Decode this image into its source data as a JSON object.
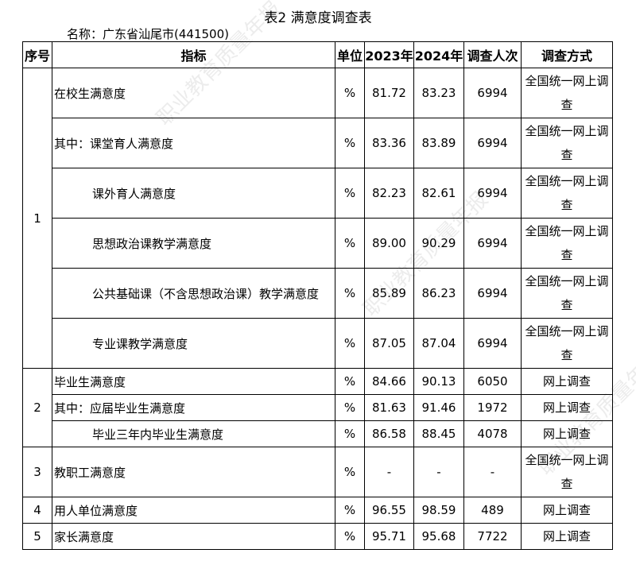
{
  "title": "表2 满意度调查表",
  "subtitle": "名称：广东省汕尾市(441500)",
  "watermark": "职业教育质量年报",
  "headers": [
    "序号",
    "指标",
    "单位",
    "2023年",
    "2024年",
    "调查人次",
    "调查方式"
  ],
  "groups": [
    {
      "no": "1",
      "rows": [
        {
          "indicator": "在校生满意度",
          "sub": false,
          "unit": "%",
          "y2023": "81.72",
          "y2024": "83.23",
          "count": "6994",
          "method": "全国统一网上调查"
        },
        {
          "indicator": "其中：课堂育人满意度",
          "sub": false,
          "unit": "%",
          "y2023": "83.36",
          "y2024": "83.89",
          "count": "6994",
          "method": "全国统一网上调查"
        },
        {
          "indicator": "课外育人满意度",
          "sub": true,
          "unit": "%",
          "y2023": "82.23",
          "y2024": "82.61",
          "count": "6994",
          "method": "全国统一网上调查"
        },
        {
          "indicator": "思想政治课教学满意度",
          "sub": true,
          "unit": "%",
          "y2023": "89.00",
          "y2024": "90.29",
          "count": "6994",
          "method": "全国统一网上调查"
        },
        {
          "indicator": "公共基础课（不含思想政治课）教学满意度",
          "sub": true,
          "unit": "%",
          "y2023": "85.89",
          "y2024": "86.23",
          "count": "6994",
          "method": "全国统一网上调查"
        },
        {
          "indicator": "专业课教学满意度",
          "sub": true,
          "unit": "%",
          "y2023": "87.05",
          "y2024": "87.04",
          "count": "6994",
          "method": "全国统一网上调查"
        }
      ]
    },
    {
      "no": "2",
      "rows": [
        {
          "indicator": "毕业生满意度",
          "sub": false,
          "unit": "%",
          "y2023": "84.66",
          "y2024": "90.13",
          "count": "6050",
          "method": "网上调查"
        },
        {
          "indicator": "其中：应届毕业生满意度",
          "sub": false,
          "unit": "%",
          "y2023": "81.63",
          "y2024": "91.46",
          "count": "1972",
          "method": "网上调查"
        },
        {
          "indicator": "毕业三年内毕业生满意度",
          "sub": true,
          "unit": "%",
          "y2023": "86.58",
          "y2024": "88.45",
          "count": "4078",
          "method": "网上调查"
        }
      ]
    },
    {
      "no": "3",
      "rows": [
        {
          "indicator": "教职工满意度",
          "sub": false,
          "unit": "%",
          "y2023": "-",
          "y2024": "-",
          "count": "-",
          "method": "全国统一网上调查"
        }
      ]
    },
    {
      "no": "4",
      "rows": [
        {
          "indicator": "用人单位满意度",
          "sub": false,
          "unit": "%",
          "y2023": "96.55",
          "y2024": "98.59",
          "count": "489",
          "method": "网上调查"
        }
      ]
    },
    {
      "no": "5",
      "rows": [
        {
          "indicator": "家长满意度",
          "sub": false,
          "unit": "%",
          "y2023": "95.71",
          "y2024": "95.68",
          "count": "7722",
          "method": "网上调查"
        }
      ]
    }
  ]
}
